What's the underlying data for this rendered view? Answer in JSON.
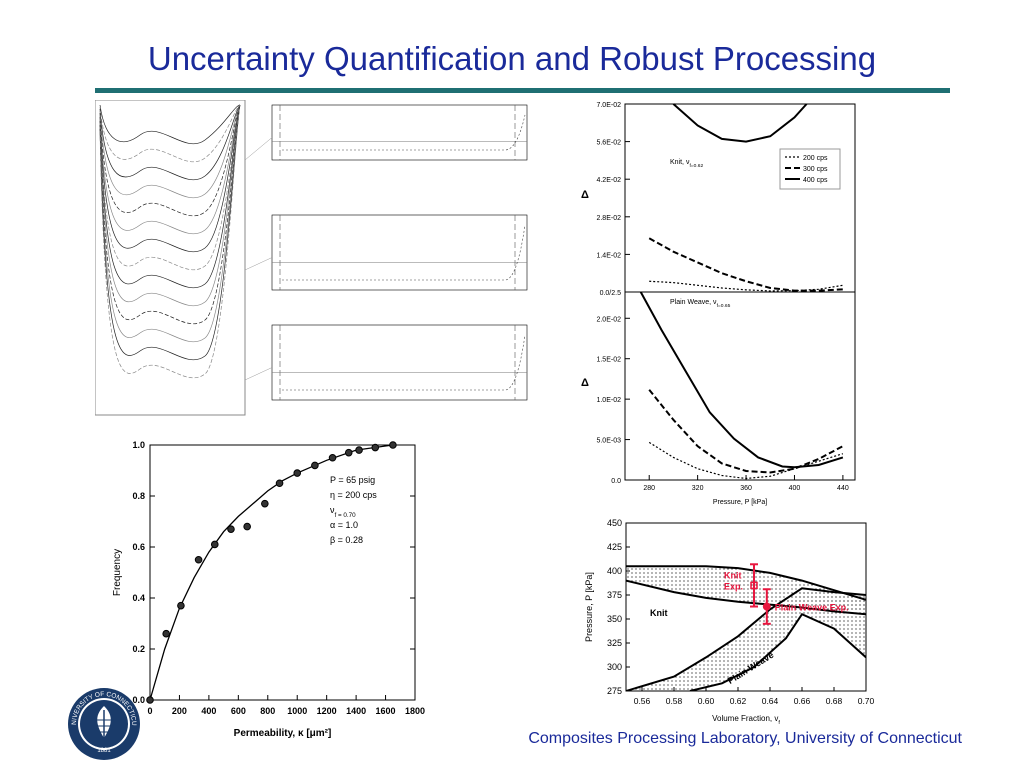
{
  "title": "Uncertainty Quantification and Robust Processing",
  "footer": "Composites Processing Laboratory, University of Connecticut",
  "seal": {
    "text": "UNIVERSITY OF CONNECTICUT",
    "year": "1881"
  },
  "chart_data": [
    {
      "id": "frequency",
      "type": "scatter",
      "ylabel": "Frequency",
      "xlabel_prefix": "Permeability",
      "xlabel_symbol": "κ",
      "xlabel_unit": "[μm²]",
      "xlim": [
        0,
        1800
      ],
      "ylim": [
        0,
        1.0
      ],
      "xticks": [
        "0",
        "200",
        "400",
        "600",
        "800",
        "1000",
        "1200",
        "1400",
        "1600",
        "1800"
      ],
      "yticks": [
        "0.0",
        "0.2",
        "0.4",
        "0.6",
        "0.8",
        "1.0"
      ],
      "points": {
        "x": [
          0,
          110,
          210,
          330,
          440,
          550,
          660,
          780,
          880,
          1000,
          1120,
          1240,
          1350,
          1420,
          1530,
          1650
        ],
        "y": [
          0,
          0.26,
          0.37,
          0.55,
          0.61,
          0.67,
          0.68,
          0.77,
          0.85,
          0.89,
          0.92,
          0.95,
          0.97,
          0.98,
          0.99,
          1.0
        ]
      },
      "fit": {
        "x": [
          0,
          100,
          200,
          300,
          400,
          500,
          600,
          700,
          800,
          900,
          1000,
          1200,
          1400,
          1650
        ],
        "y": [
          0,
          0.2,
          0.36,
          0.48,
          0.58,
          0.66,
          0.72,
          0.77,
          0.82,
          0.86,
          0.89,
          0.94,
          0.98,
          1.0
        ]
      },
      "legend": [
        "P = 65 psig",
        "η = 200 cps",
        "ν_f = 0.70",
        "α = 1.0",
        "β = 0.28"
      ]
    },
    {
      "id": "delta",
      "type": "line",
      "xlabel": "Pressure, P [kPa]",
      "ylabel": "Δ",
      "xlim": [
        260,
        450
      ],
      "xticks": [
        "280",
        "320",
        "360",
        "400",
        "440"
      ],
      "top": {
        "label": "Knit, ν_f=0.62",
        "ylim": [
          0,
          0.07
        ],
        "yticks": [
          "0.0/2.5",
          "1.4E-02",
          "2.8E-02",
          "4.2E-02",
          "5.6E-02",
          "7.0E-02"
        ],
        "series": [
          {
            "name": "200 cps",
            "x": [
              280,
              300,
              320,
              340,
              360,
              380,
              400,
              420,
              440
            ],
            "y": [
              0.004,
              0.0035,
              0.0025,
              0.0015,
              0.0008,
              0.0004,
              0.0005,
              0.001,
              0.0025
            ]
          },
          {
            "name": "300 cps",
            "x": [
              280,
              300,
              320,
              340,
              360,
              380,
              400,
              420,
              440
            ],
            "y": [
              0.02,
              0.015,
              0.011,
              0.007,
              0.004,
              0.0015,
              0.0005,
              0.0005,
              0.001
            ]
          },
          {
            "name": "400 cps",
            "x": [
              300,
              320,
              340,
              360,
              380,
              400,
              410
            ],
            "y": [
              0.07,
              0.062,
              0.057,
              0.056,
              0.058,
              0.065,
              0.07
            ]
          }
        ]
      },
      "bottom": {
        "label": "Plain Weave, ν_f=0.65",
        "ylim": [
          0,
          0.025
        ],
        "yticks": [
          "0.0",
          "5.0E-03",
          "1.0E-02",
          "1.5E-02",
          "2.0E-02"
        ],
        "series": [
          {
            "name": "200 cps",
            "x": [
              280,
              300,
              320,
              340,
              360,
              380,
              400,
              420,
              440
            ],
            "y": [
              0.005,
              0.003,
              0.0015,
              0.0006,
              0.0002,
              0.0005,
              0.0015,
              0.0025,
              0.0035
            ]
          },
          {
            "name": "300 cps",
            "x": [
              280,
              300,
              320,
              340,
              360,
              380,
              400,
              420,
              440
            ],
            "y": [
              0.012,
              0.008,
              0.0045,
              0.0022,
              0.0012,
              0.001,
              0.0015,
              0.0028,
              0.0045
            ]
          },
          {
            "name": "400 cps",
            "x": [
              273,
              290,
              310,
              330,
              350,
              370,
              390,
              400,
              420,
              440
            ],
            "y": [
              0.025,
              0.02,
              0.0145,
              0.009,
              0.0055,
              0.003,
              0.0018,
              0.0017,
              0.002,
              0.003
            ]
          }
        ]
      }
    },
    {
      "id": "window",
      "type": "area",
      "xlabel": "Volume Fraction, v_f",
      "ylabel": "Pressure, P [kPa]",
      "xlim": [
        0.55,
        0.7
      ],
      "ylim": [
        275,
        450
      ],
      "xticks": [
        "0.56",
        "0.58",
        "0.60",
        "0.62",
        "0.64",
        "0.66",
        "0.68",
        "0.70"
      ],
      "yticks": [
        "275",
        "300",
        "325",
        "350",
        "375",
        "400",
        "425",
        "450"
      ],
      "knit_region": {
        "upper": {
          "x": [
            0.55,
            0.58,
            0.6,
            0.62,
            0.64,
            0.66,
            0.68,
            0.7
          ],
          "y": [
            405,
            405,
            405,
            403,
            398,
            390,
            380,
            370
          ]
        },
        "lower": {
          "x": [
            0.55,
            0.58,
            0.6,
            0.62,
            0.64,
            0.66,
            0.68,
            0.7
          ],
          "y": [
            390,
            378,
            372,
            368,
            365,
            362,
            358,
            355
          ]
        },
        "label": "Knit"
      },
      "plain_region": {
        "upper": {
          "x": [
            0.55,
            0.58,
            0.6,
            0.62,
            0.64,
            0.66,
            0.68,
            0.7
          ],
          "y": [
            275,
            290,
            310,
            332,
            360,
            382,
            378,
            375
          ]
        },
        "lower": {
          "x": [
            0.59,
            0.61,
            0.63,
            0.65,
            0.66,
            0.68,
            0.7
          ],
          "y": [
            275,
            283,
            300,
            330,
            355,
            340,
            310
          ]
        },
        "label": "Plain Weave"
      },
      "experiments": [
        {
          "label": "Knit Exp.",
          "x": 0.63,
          "y": 385,
          "err": 22
        },
        {
          "label": "Plain Weave Exp.",
          "x": 0.638,
          "y": 363,
          "err": 18
        }
      ]
    }
  ]
}
